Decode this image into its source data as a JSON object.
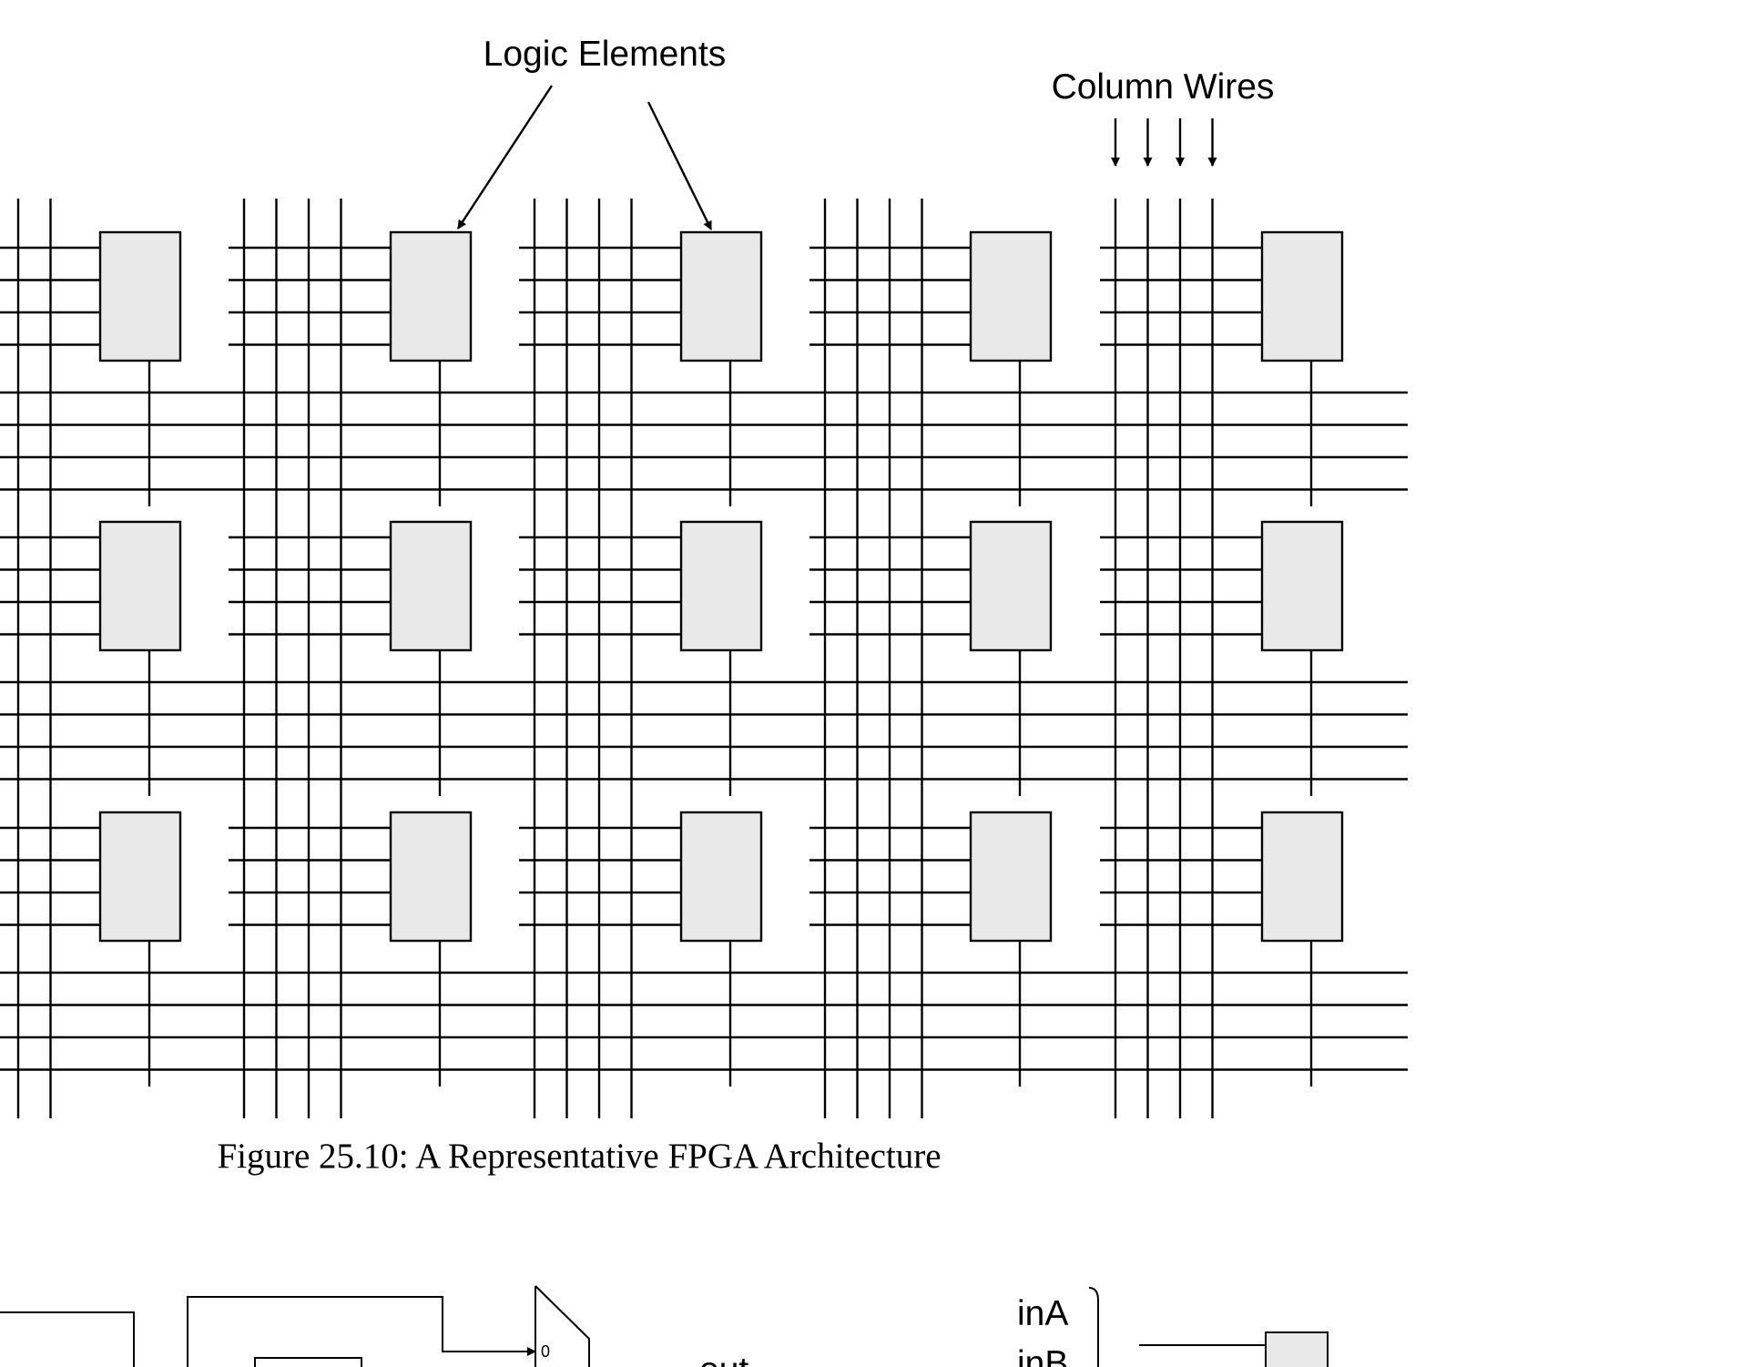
{
  "labels": {
    "logic_elements": "Logic Elements",
    "column_wires": "Column Wires"
  },
  "caption": "Figure 25.10: A Representative FPGA Architecture",
  "next_figure": {
    "mux_input_label": "0",
    "output_label": "out",
    "input_a": "inA",
    "input_b": "inB"
  },
  "grid": {
    "columns": 5,
    "rows": 3,
    "column_wires_per_channel": 4,
    "row_wires_per_channel": 4,
    "inputs_per_element": 4
  },
  "colors": {
    "line": "#000000",
    "logic_element_fill": "#e9e9e9"
  }
}
